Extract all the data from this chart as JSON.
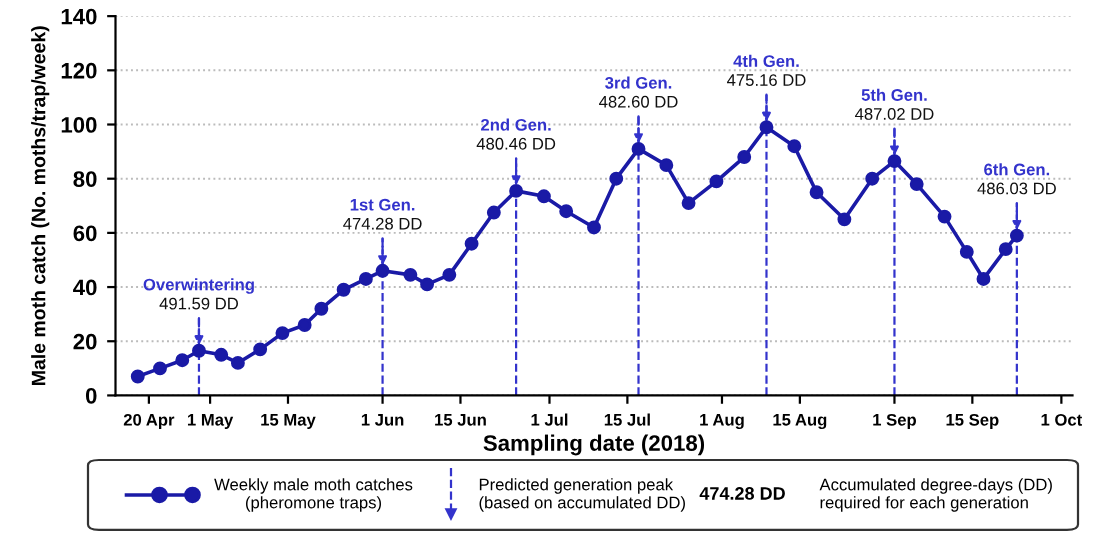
{
  "chart_data": {
    "type": "line",
    "xlabel": "Sampling date (2018)",
    "ylabel": "Male moth catch (No. moths/trap/week)",
    "x": [
      "2018-04-18",
      "2018-04-22",
      "2018-04-26",
      "2018-04-29",
      "2018-05-03",
      "2018-05-06",
      "2018-05-10",
      "2018-05-14",
      "2018-05-18",
      "2018-05-21",
      "2018-05-25",
      "2018-05-29",
      "2018-06-01",
      "2018-06-06",
      "2018-06-09",
      "2018-06-13",
      "2018-06-17",
      "2018-06-21",
      "2018-06-25",
      "2018-06-30",
      "2018-07-04",
      "2018-07-09",
      "2018-07-13",
      "2018-07-17",
      "2018-07-22",
      "2018-07-26",
      "2018-07-31",
      "2018-08-05",
      "2018-08-09",
      "2018-08-14",
      "2018-08-18",
      "2018-08-23",
      "2018-08-28",
      "2018-09-01",
      "2018-09-05",
      "2018-09-10",
      "2018-09-14",
      "2018-09-17",
      "2018-09-21",
      "2018-09-23"
    ],
    "series": [
      {
        "name": "Weekly male moth catches\n(pheromone traps)",
        "color": "#1a1aa6",
        "values": [
          7,
          10,
          13,
          16.5,
          15,
          12,
          17,
          23,
          26,
          32,
          39,
          43,
          46,
          44.5,
          41,
          44.5,
          56,
          67.5,
          75.5,
          73.5,
          68,
          62,
          80,
          91,
          85,
          71,
          79,
          88,
          99,
          92,
          75,
          65,
          80,
          86.5,
          78,
          66,
          53,
          43,
          54,
          59
        ]
      }
    ],
    "marker": "circle",
    "line_style": "solid",
    "xlim": [
      "2018-04-14",
      "2018-10-03"
    ],
    "xticks": [
      {
        "value": "2018-04-20",
        "label": "20 Apr"
      },
      {
        "value": "2018-05-01",
        "label": "1 May"
      },
      {
        "value": "2018-05-15",
        "label": "15 May"
      },
      {
        "value": "2018-06-01",
        "label": "1 Jun"
      },
      {
        "value": "2018-06-15",
        "label": "15 Jun"
      },
      {
        "value": "2018-07-01",
        "label": "1 Jul"
      },
      {
        "value": "2018-07-15",
        "label": "15 Jul"
      },
      {
        "value": "2018-08-01",
        "label": "1 Aug"
      },
      {
        "value": "2018-08-15",
        "label": "15 Aug"
      },
      {
        "value": "2018-09-01",
        "label": "1 Sep"
      },
      {
        "value": "2018-09-15",
        "label": "15 Sep"
      },
      {
        "value": "2018-10-01",
        "label": "1 Oct"
      }
    ],
    "ylim": [
      0,
      140
    ],
    "yticks": [
      0,
      20,
      40,
      60,
      80,
      100,
      120,
      140
    ],
    "grid": "y",
    "ref_lines": [
      {
        "axis": "x",
        "value": "2018-04-29",
        "label": "Overwintering\n491.59 DD",
        "color": "#3333cc",
        "line_style": "dashed"
      },
      {
        "axis": "x",
        "value": "2018-06-01",
        "label": "1st Gen.\n474.28 DD",
        "color": "#3333cc",
        "line_style": "dashed"
      },
      {
        "axis": "x",
        "value": "2018-06-25",
        "label": "2nd Gen.\n480.46 DD",
        "color": "#3333cc",
        "line_style": "dashed"
      },
      {
        "axis": "x",
        "value": "2018-07-17",
        "label": "3rd Gen.\n482.60 DD",
        "color": "#3333cc",
        "line_style": "dashed"
      },
      {
        "axis": "x",
        "value": "2018-08-09",
        "label": "4th Gen.\n475.16 DD",
        "color": "#3333cc",
        "line_style": "dashed"
      },
      {
        "axis": "x",
        "value": "2018-09-01",
        "label": "5th Gen.\n487.02 DD",
        "color": "#3333cc",
        "line_style": "dashed"
      },
      {
        "axis": "x",
        "value": "2018-09-23",
        "label": "6th Gen.\n486.03 DD",
        "color": "#3333cc",
        "line_style": "dashed"
      }
    ],
    "annotations": [
      "Predicted generation peak\n(based on accumulated DD)",
      "474.28 DD",
      "Accumulated degree-days (DD)\nrequired for each generation"
    ],
    "legend": "bottom"
  }
}
